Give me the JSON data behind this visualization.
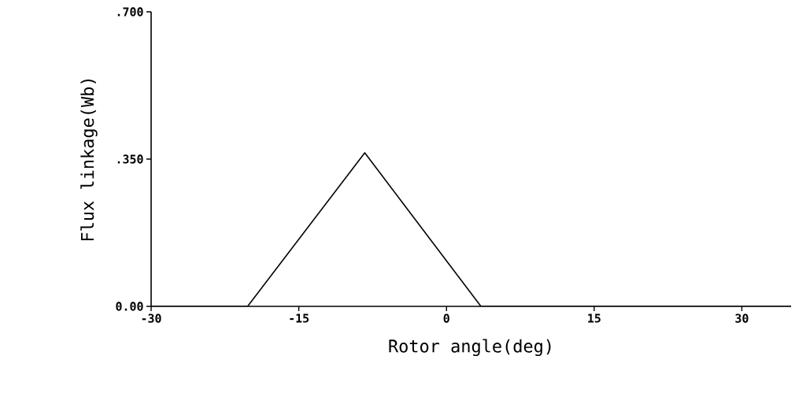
{
  "chart_data": {
    "type": "line",
    "xlabel": "Rotor angle(deg)",
    "ylabel": "Flux linkage(Wb)",
    "x": [
      -30,
      -20.2,
      -8.3,
      3.5,
      35
    ],
    "series": [
      {
        "color": "#000000",
        "values": [
          0,
          0,
          0.365,
          0,
          0
        ]
      }
    ],
    "xlim": [
      -30,
      35
    ],
    "xticks": [
      -30,
      -15,
      0,
      15,
      30
    ],
    "ylim": [
      0,
      0.7
    ],
    "yticks": [
      {
        "value": 0,
        "label": "0.00"
      },
      {
        "value": 0.35,
        "label": ".350"
      },
      {
        "value": 0.7,
        "label": ".700"
      }
    ],
    "grid": false,
    "marker": "none",
    "line_style": "solid"
  }
}
